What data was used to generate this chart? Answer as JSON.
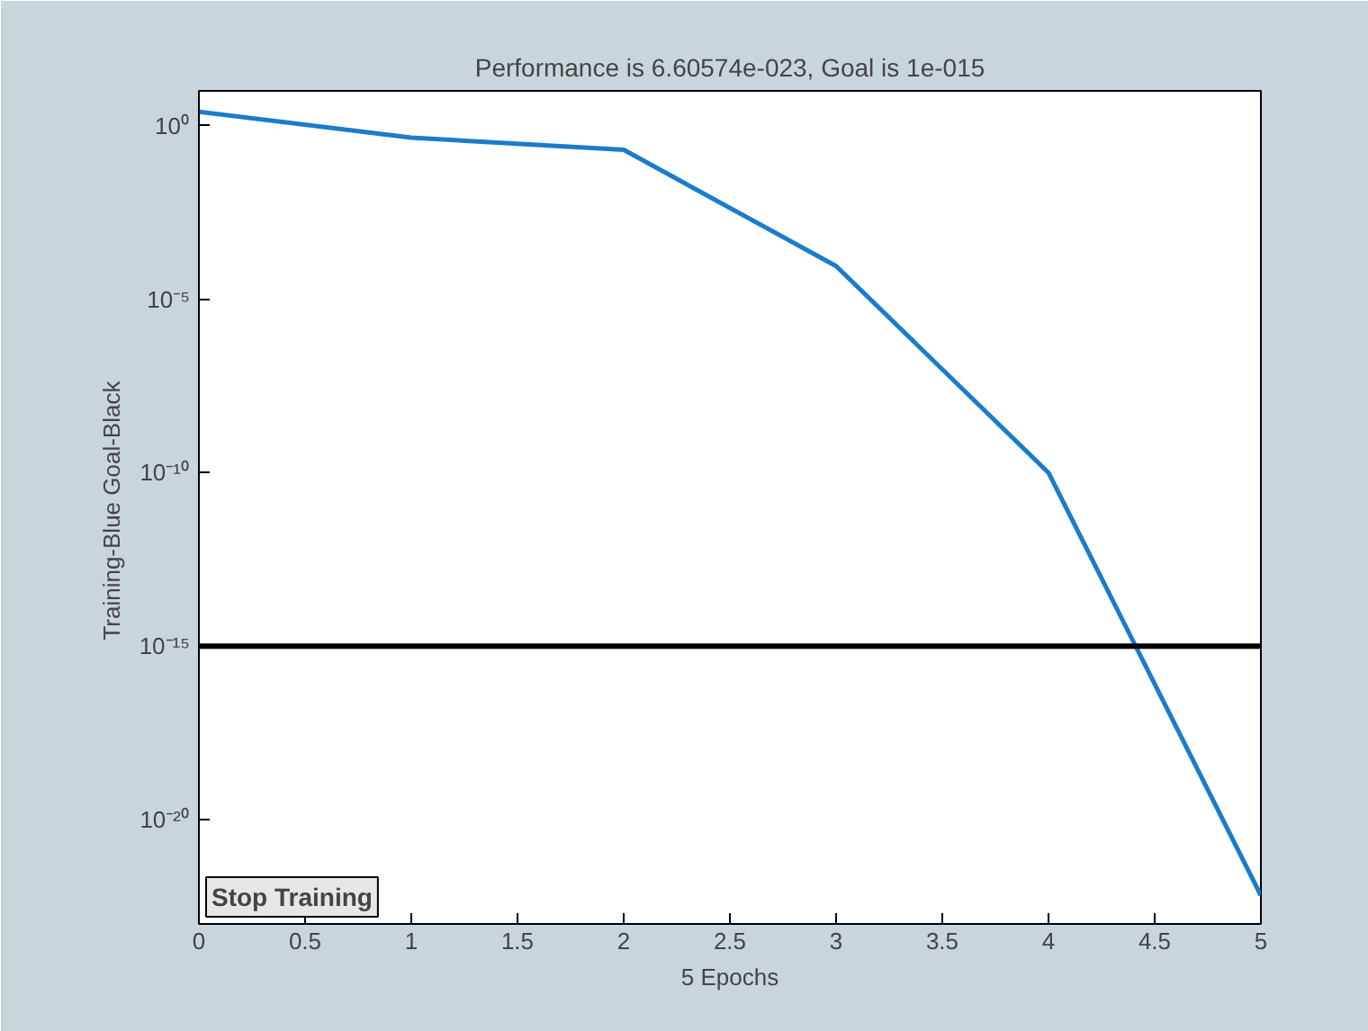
{
  "chart_data": {
    "type": "line",
    "title": "Performance is 6.60574e-023, Goal is 1e-015",
    "xlabel": "5 Epochs",
    "ylabel": "Training-Blue  Goal-Black",
    "x": [
      0,
      1,
      2,
      3,
      4,
      5
    ],
    "series": [
      {
        "color": "#1a7ccc",
        "values": [
          2.5,
          0.45,
          0.2,
          9e-05,
          1e-10,
          6.60574e-23
        ]
      }
    ],
    "log": "y",
    "xlim": [
      0,
      5
    ],
    "ylim": [
      1e-23,
      10
    ],
    "xticks": [
      0,
      0.5,
      1,
      1.5,
      2,
      2.5,
      3,
      3.5,
      4,
      4.5,
      5
    ],
    "yticks": [
      {
        "value": 1,
        "label": "10⁰"
      },
      {
        "value": 1e-05,
        "label": "10⁻⁵"
      },
      {
        "value": 1e-10,
        "label": "10⁻¹⁰"
      },
      {
        "value": 1e-15,
        "label": "10⁻¹⁵"
      },
      {
        "value": 1e-20,
        "label": "10⁻²⁰"
      }
    ],
    "ref_lines": [
      {
        "axis": "y",
        "value": 1e-15,
        "color": "#000000"
      }
    ],
    "annotations": [
      "Stop Training"
    ],
    "grid": false,
    "marker": "none",
    "line_style": "solid"
  }
}
